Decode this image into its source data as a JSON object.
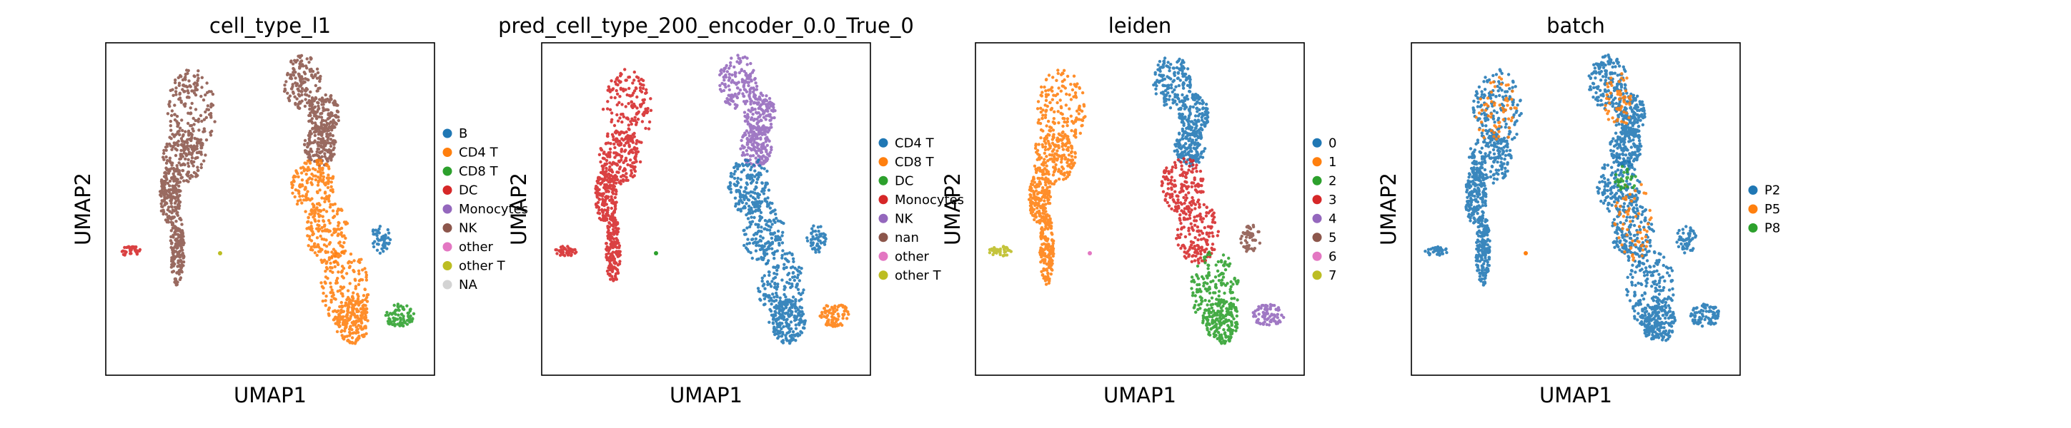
{
  "chart_data": [
    {
      "type": "scatter",
      "title": "cell_type_l1",
      "xlabel": "UMAP1",
      "ylabel": "UMAP2",
      "legend_position": "right",
      "legend": [
        {
          "label": "B",
          "color": "#1f77b4"
        },
        {
          "label": "CD4 T",
          "color": "#ff7f0e"
        },
        {
          "label": "CD8 T",
          "color": "#2ca02c"
        },
        {
          "label": "DC",
          "color": "#d62728"
        },
        {
          "label": "Monocytes",
          "color": "#9467bd"
        },
        {
          "label": "NK",
          "color": "#8c564b"
        },
        {
          "label": "other",
          "color": "#e377c2"
        },
        {
          "label": "other T",
          "color": "#bcbd22"
        },
        {
          "label": "NA",
          "color": "#d3d3d3"
        }
      ]
    },
    {
      "type": "scatter",
      "title": "pred_cell_type_200_encoder_0.0_True_0",
      "xlabel": "UMAP1",
      "ylabel": "UMAP2",
      "legend_position": "right",
      "legend": [
        {
          "label": "CD4 T",
          "color": "#1f77b4"
        },
        {
          "label": "CD8 T",
          "color": "#ff7f0e"
        },
        {
          "label": "DC",
          "color": "#2ca02c"
        },
        {
          "label": "Monocytes",
          "color": "#d62728"
        },
        {
          "label": "NK",
          "color": "#9467bd"
        },
        {
          "label": "nan",
          "color": "#8c564b"
        },
        {
          "label": "other",
          "color": "#e377c2"
        },
        {
          "label": "other T",
          "color": "#bcbd22"
        }
      ]
    },
    {
      "type": "scatter",
      "title": "leiden",
      "xlabel": "UMAP1",
      "ylabel": "UMAP2",
      "legend_position": "right",
      "legend": [
        {
          "label": "0",
          "color": "#1f77b4"
        },
        {
          "label": "1",
          "color": "#ff7f0e"
        },
        {
          "label": "2",
          "color": "#2ca02c"
        },
        {
          "label": "3",
          "color": "#d62728"
        },
        {
          "label": "4",
          "color": "#9467bd"
        },
        {
          "label": "5",
          "color": "#8c564b"
        },
        {
          "label": "6",
          "color": "#e377c2"
        },
        {
          "label": "7",
          "color": "#bcbd22"
        }
      ]
    },
    {
      "type": "scatter",
      "title": "batch",
      "xlabel": "UMAP1",
      "ylabel": "UMAP2",
      "legend_position": "right",
      "legend": [
        {
          "label": "P2",
          "color": "#1f77b4"
        },
        {
          "label": "P5",
          "color": "#ff7f0e"
        },
        {
          "label": "P8",
          "color": "#2ca02c"
        }
      ]
    }
  ]
}
